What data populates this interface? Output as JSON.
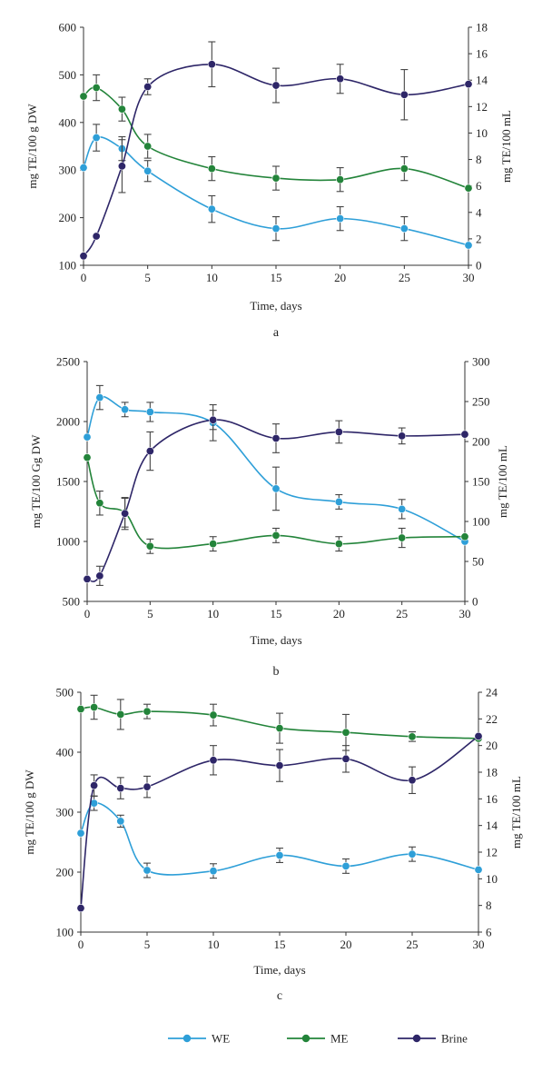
{
  "colors": {
    "WE": "#2e9fd8",
    "ME": "#23843a",
    "Brine": "#2e2668",
    "error": "#444444"
  },
  "legend": [
    {
      "name": "WE",
      "label": "WE"
    },
    {
      "name": "ME",
      "label": "ME"
    },
    {
      "name": "Brine",
      "label": "Brine"
    }
  ],
  "chart_data": [
    {
      "type": "line",
      "panel_label": "a",
      "xlabel": "Time, days",
      "ylabel_left": "mg TE/100 g DW",
      "ylabel_right": "mg TE/100 mL",
      "x_ticks": [
        0,
        5,
        10,
        15,
        20,
        25,
        30
      ],
      "xlim": [
        0,
        30
      ],
      "ylim_left": [
        100,
        600
      ],
      "yticks_left": [
        100,
        200,
        300,
        400,
        500,
        600
      ],
      "ylim_right": [
        0,
        18
      ],
      "yticks_right": [
        0,
        2,
        4,
        6,
        8,
        10,
        12,
        14,
        16,
        18
      ],
      "series": [
        {
          "name": "WE",
          "axis": "left",
          "x": [
            0,
            1,
            3,
            5,
            10,
            15,
            20,
            25,
            30
          ],
          "values": [
            305,
            368,
            345,
            298,
            218,
            177,
            198,
            177,
            142
          ],
          "errors": [
            0,
            28,
            25,
            22,
            28,
            25,
            25,
            25,
            0
          ]
        },
        {
          "name": "ME",
          "axis": "left",
          "x": [
            0,
            1,
            3,
            5,
            10,
            15,
            20,
            25,
            30
          ],
          "values": [
            455,
            473,
            428,
            350,
            303,
            283,
            280,
            303,
            262
          ],
          "errors": [
            0,
            27,
            25,
            25,
            25,
            25,
            25,
            25,
            0
          ]
        },
        {
          "name": "Brine",
          "axis": "right",
          "x": [
            0,
            1,
            3,
            5,
            10,
            15,
            20,
            25,
            30
          ],
          "values": [
            0.7,
            2.2,
            7.5,
            13.5,
            15.2,
            13.6,
            14.1,
            12.9,
            13.7
          ],
          "errors": [
            0,
            0,
            2.0,
            0.6,
            1.7,
            1.3,
            1.1,
            1.9,
            0
          ]
        }
      ]
    },
    {
      "type": "line",
      "panel_label": "b",
      "xlabel": "Time, days",
      "ylabel_left": "mg TE/100 Gg DW",
      "ylabel_right": "mg TE/100 mL",
      "x_ticks": [
        0,
        5,
        10,
        15,
        20,
        25,
        30
      ],
      "xlim": [
        0,
        30
      ],
      "ylim_left": [
        500,
        2500
      ],
      "yticks_left": [
        500,
        1000,
        1500,
        2000,
        2500
      ],
      "ylim_right": [
        0,
        300
      ],
      "yticks_right": [
        0,
        50,
        100,
        150,
        200,
        250,
        300
      ],
      "series": [
        {
          "name": "WE",
          "axis": "left",
          "x": [
            0,
            1,
            3,
            5,
            10,
            15,
            20,
            25,
            30
          ],
          "values": [
            1870,
            2200,
            2100,
            2080,
            1990,
            1440,
            1330,
            1270,
            1000
          ],
          "errors": [
            0,
            100,
            60,
            80,
            150,
            180,
            60,
            80,
            0
          ]
        },
        {
          "name": "ME",
          "axis": "left",
          "x": [
            0,
            1,
            3,
            5,
            10,
            15,
            20,
            25,
            30
          ],
          "values": [
            1700,
            1320,
            1240,
            960,
            980,
            1050,
            980,
            1030,
            1040
          ],
          "errors": [
            0,
            100,
            120,
            60,
            60,
            60,
            60,
            80,
            0
          ]
        },
        {
          "name": "Brine",
          "axis": "right",
          "x": [
            0,
            1,
            3,
            5,
            10,
            15,
            20,
            25,
            30
          ],
          "values": [
            28,
            32,
            110,
            188,
            227,
            204,
            212,
            207,
            209
          ],
          "errors": [
            0,
            12,
            20,
            24,
            12,
            18,
            14,
            10,
            0
          ]
        }
      ]
    },
    {
      "type": "line",
      "panel_label": "c",
      "xlabel": "Time, days",
      "ylabel_left": "mg TE/100 g DW",
      "ylabel_right": "mg TE/100 mL",
      "x_ticks": [
        0,
        5,
        10,
        15,
        20,
        25,
        30
      ],
      "xlim": [
        0,
        30
      ],
      "ylim_left": [
        100,
        500
      ],
      "yticks_left": [
        100,
        200,
        300,
        400,
        500
      ],
      "ylim_right": [
        6,
        24
      ],
      "yticks_right": [
        6,
        8,
        10,
        12,
        14,
        16,
        18,
        20,
        22,
        24
      ],
      "series": [
        {
          "name": "WE",
          "axis": "left",
          "x": [
            0,
            1,
            3,
            5,
            10,
            15,
            20,
            25,
            30
          ],
          "values": [
            265,
            315,
            285,
            203,
            202,
            228,
            210,
            230,
            204
          ],
          "errors": [
            0,
            12,
            10,
            12,
            12,
            12,
            12,
            12,
            0
          ]
        },
        {
          "name": "ME",
          "axis": "left",
          "x": [
            0,
            1,
            3,
            5,
            10,
            15,
            20,
            25,
            30
          ],
          "values": [
            472,
            475,
            463,
            468,
            462,
            440,
            433,
            426,
            423
          ],
          "errors": [
            0,
            20,
            25,
            12,
            18,
            25,
            30,
            8,
            0
          ]
        },
        {
          "name": "Brine",
          "axis": "right",
          "x": [
            0,
            1,
            3,
            5,
            10,
            15,
            20,
            25,
            30
          ],
          "values": [
            7.8,
            17.0,
            16.8,
            16.9,
            18.9,
            18.5,
            19.0,
            17.4,
            20.7
          ],
          "errors": [
            0,
            0.8,
            0.8,
            0.8,
            1.1,
            1.2,
            1.0,
            1.0,
            0
          ]
        }
      ]
    }
  ]
}
